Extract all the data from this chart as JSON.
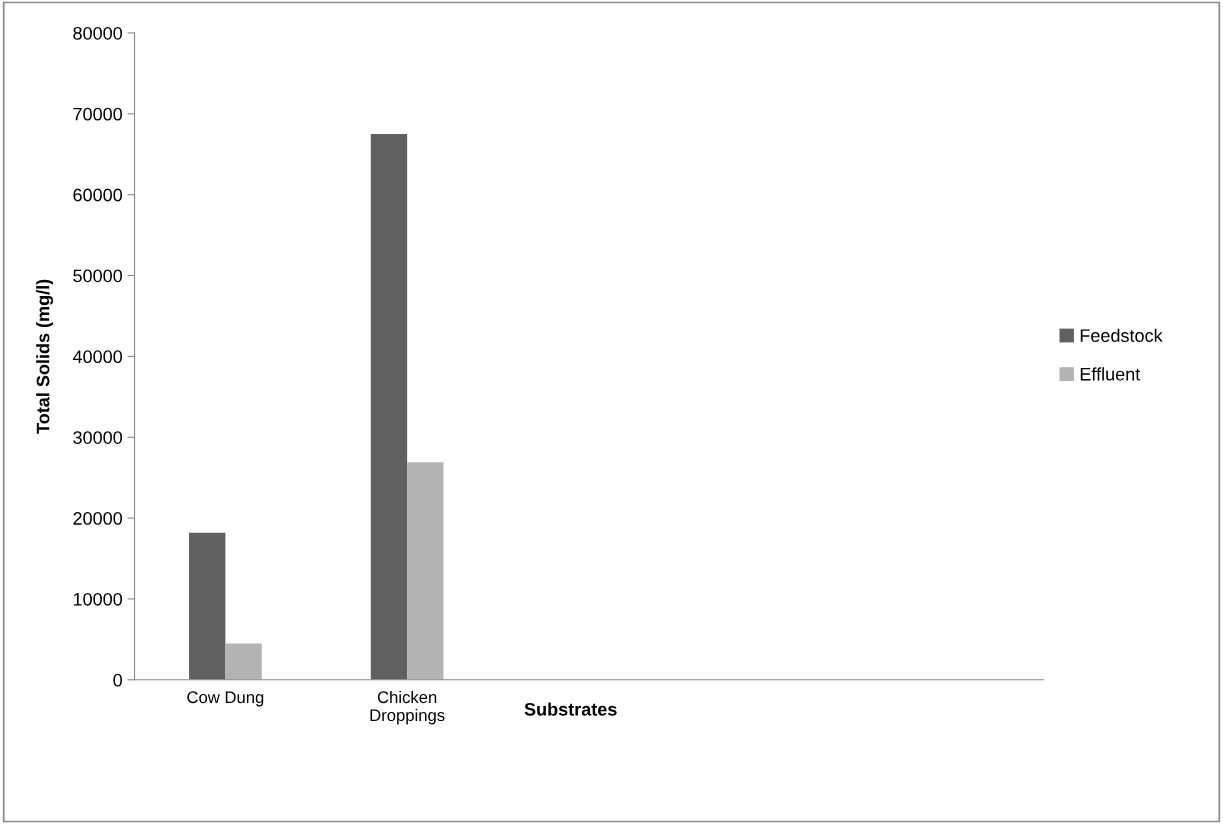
{
  "chart_data": {
    "type": "bar",
    "xlabel": "Substrates",
    "ylabel": "Total Solids (mg/l)",
    "categories": [
      "Cow Dung",
      "Chicken\nDroppings",
      null,
      null,
      null
    ],
    "series": [
      {
        "name": "Feedstock",
        "color": "#606060",
        "values": [
          18200,
          67500,
          null,
          null,
          null
        ]
      },
      {
        "name": "Effluent",
        "color": "#b3b3b3",
        "values": [
          4500,
          26900,
          null,
          null,
          null
        ]
      }
    ],
    "ylim": [
      0,
      80000
    ],
    "yticks": [
      0,
      10000,
      20000,
      30000,
      40000,
      50000,
      60000,
      70000,
      80000
    ],
    "grid": false,
    "legend": "right"
  }
}
